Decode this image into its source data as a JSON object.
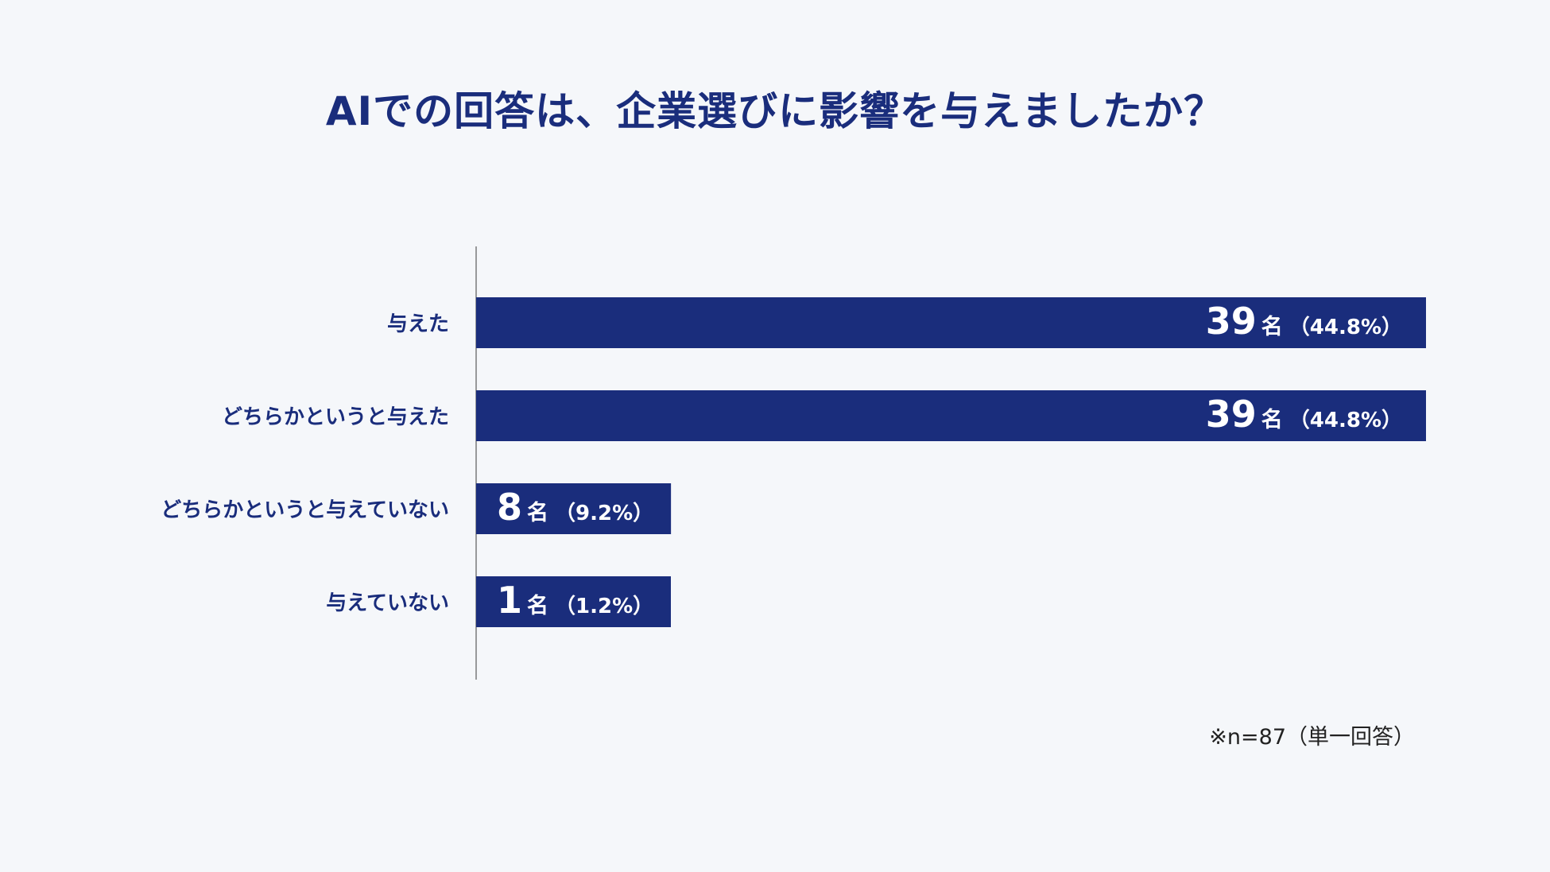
{
  "title": "AIでの回答は、企業選びに影響を与えましたか？",
  "note": "※n=87（単一回答）",
  "colors": {
    "bar": "#1a2d7c",
    "axis": "#7a7a7a",
    "label": "#1a2d7c",
    "background": "#f5f7fa",
    "bar_text": "#ffffff"
  },
  "chart_data": {
    "type": "bar",
    "orientation": "horizontal",
    "title": "AIでの回答は、企業選びに影響を与えましたか？",
    "categories": [
      "与えた",
      "どちらかというと与えた",
      "どちらかというと与えていない",
      "与えていない"
    ],
    "values": [
      39,
      39,
      8,
      1
    ],
    "value_unit": "名",
    "percent_labels": [
      "（44.8%）",
      "（44.8%）",
      "（9.2%）",
      "（1.2%）"
    ],
    "grid": false,
    "legend": "none"
  }
}
